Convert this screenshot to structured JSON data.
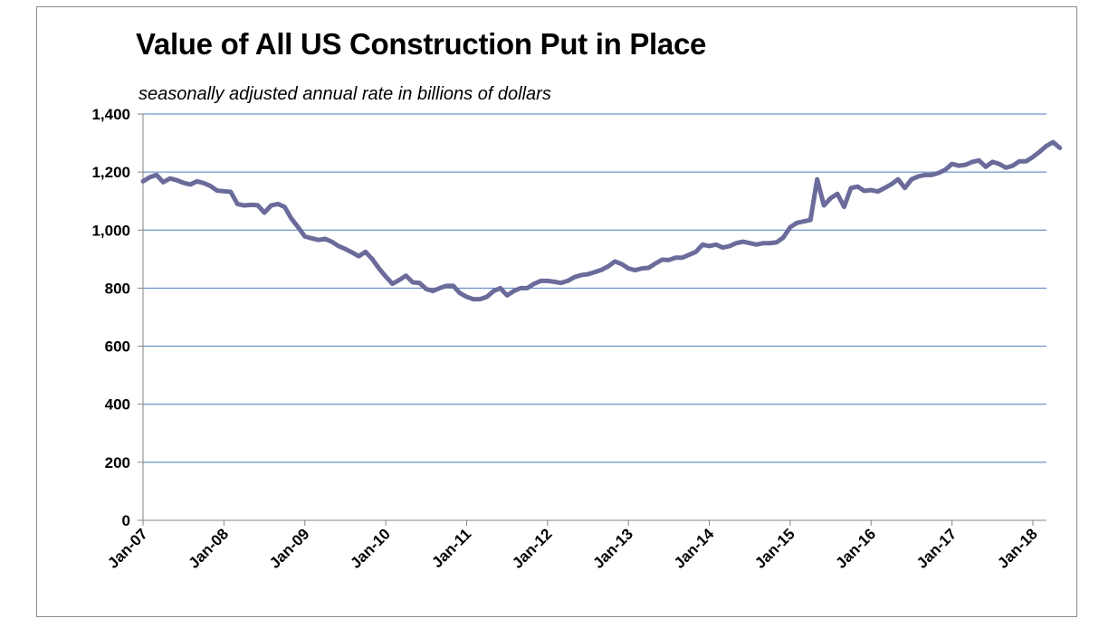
{
  "chart_data": {
    "type": "line",
    "title": "Value of All US Construction Put in Place",
    "subtitle": "seasonally adjusted annual rate in billions of dollars",
    "xlabel": "",
    "ylabel": "",
    "ylim": [
      0,
      1400
    ],
    "yticks": [
      0,
      200,
      400,
      600,
      800,
      1000,
      1200,
      1400
    ],
    "ytick_labels": [
      "0",
      "200",
      "400",
      "600",
      "800",
      "1,000",
      "1,200",
      "1,400"
    ],
    "xticks": [
      "Jan-07",
      "Jan-08",
      "Jan-09",
      "Jan-10",
      "Jan-11",
      "Jan-12",
      "Jan-13",
      "Jan-14",
      "Jan-15",
      "Jan-16",
      "Jan-17",
      "Jan-18"
    ],
    "grid": true,
    "line_color": "#6b6b9b",
    "series": [
      {
        "start": "Jan-07",
        "frequency": "monthly",
        "values": [
          1168,
          1182,
          1190,
          1165,
          1178,
          1172,
          1163,
          1157,
          1168,
          1162,
          1152,
          1136,
          1134,
          1132,
          1090,
          1085,
          1087,
          1086,
          1060,
          1085,
          1090,
          1080,
          1040,
          1010,
          978,
          972,
          966,
          970,
          960,
          945,
          935,
          923,
          910,
          925,
          900,
          868,
          840,
          815,
          828,
          843,
          820,
          818,
          797,
          790,
          800,
          808,
          808,
          783,
          770,
          762,
          762,
          770,
          790,
          800,
          775,
          790,
          800,
          800,
          815,
          825,
          825,
          822,
          818,
          825,
          838,
          845,
          848,
          855,
          863,
          875,
          892,
          883,
          868,
          862,
          868,
          870,
          885,
          898,
          897,
          905,
          905,
          915,
          925,
          950,
          945,
          950,
          940,
          945,
          955,
          960,
          955,
          950,
          955,
          955,
          958,
          975,
          1010,
          1025,
          1030,
          1035,
          1175,
          1085,
          1110,
          1125,
          1080,
          1145,
          1150,
          1135,
          1138,
          1133,
          1145,
          1158,
          1175,
          1145,
          1175,
          1185,
          1190,
          1190,
          1197,
          1208,
          1228,
          1222,
          1225,
          1235,
          1240,
          1218,
          1235,
          1228,
          1215,
          1222,
          1237,
          1237,
          1252,
          1270,
          1290,
          1303,
          1283
        ]
      }
    ]
  }
}
